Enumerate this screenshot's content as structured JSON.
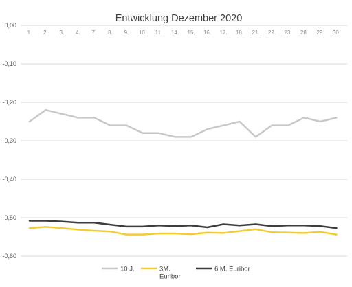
{
  "chart_data": {
    "type": "line",
    "title": "Entwicklung Dezember 2020",
    "xlabel": "",
    "ylabel": "",
    "categories": [
      "1.",
      "2.",
      "3.",
      "4.",
      "7.",
      "8.",
      "9.",
      "10.",
      "11.",
      "14.",
      "15.",
      "16.",
      "17.",
      "18.",
      "21.",
      "22.",
      "23.",
      "28.",
      "29.",
      "30."
    ],
    "y_tick_labels": [
      "0,00",
      "-0,10",
      "-0,20",
      "-0,30",
      "-0,40",
      "-0,50",
      "-0,60"
    ],
    "ylim": [
      -0.6,
      0.0
    ],
    "grid": true,
    "x_axis_position": "top",
    "legend_position": "bottom",
    "series": [
      {
        "name": "10 J.",
        "color": "#c8c8c8",
        "values": [
          -0.25,
          -0.22,
          -0.23,
          -0.24,
          -0.24,
          -0.26,
          -0.26,
          -0.28,
          -0.28,
          -0.29,
          -0.29,
          -0.27,
          -0.26,
          -0.25,
          -0.29,
          -0.26,
          -0.26,
          -0.24,
          -0.25,
          -0.24
        ]
      },
      {
        "name": "3M. Euribor",
        "name_lines": [
          "3M.",
          "Euribor"
        ],
        "color": "#f2cd30",
        "values": [
          -0.527,
          -0.524,
          -0.527,
          -0.531,
          -0.534,
          -0.536,
          -0.544,
          -0.544,
          -0.541,
          -0.541,
          -0.543,
          -0.539,
          -0.54,
          -0.535,
          -0.53,
          -0.538,
          -0.539,
          -0.54,
          -0.537,
          -0.544
        ]
      },
      {
        "name": "6 M. Euribor",
        "color": "#3d3d3d",
        "values": [
          -0.508,
          -0.508,
          -0.51,
          -0.513,
          -0.513,
          -0.518,
          -0.523,
          -0.523,
          -0.52,
          -0.522,
          -0.52,
          -0.525,
          -0.517,
          -0.52,
          -0.517,
          -0.522,
          -0.52,
          -0.52,
          -0.522,
          -0.527
        ]
      }
    ]
  }
}
